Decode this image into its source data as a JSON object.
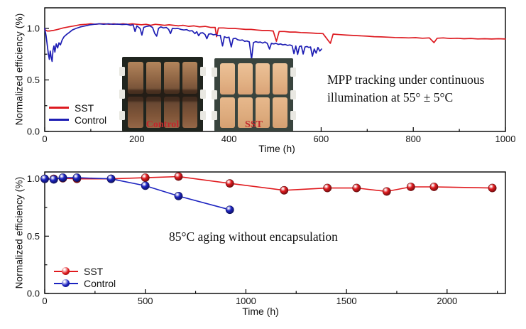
{
  "figure": {
    "background": "#ffffff"
  },
  "top_chart": {
    "y_axis_title": "Normalized efficiency (%)",
    "x_axis_title": "Time (h)",
    "annotation_line1": "MPP tracking under continuous",
    "annotation_line2": "illumination at 55° ± 5°C",
    "insets": {
      "control_label": "Control",
      "sst_label": "SST",
      "label_color": "#c2272c"
    }
  },
  "bottom_chart": {
    "y_axis_title": "Normalized efficiency (%)",
    "x_axis_title": "Time (h)",
    "annotation": "85°C aging without encapsulation"
  },
  "chart_data": [
    {
      "type": "line",
      "title": "MPP tracking under continuous illumination at 55° ± 5°C",
      "xlabel": "Time (h)",
      "ylabel": "Normalized efficiency (%)",
      "xlim": [
        0,
        1000
      ],
      "ylim": [
        0,
        1.2
      ],
      "x_ticks": [
        0,
        200,
        400,
        600,
        800,
        1000
      ],
      "x_minor_step": 100,
      "y_ticks": [
        0.0,
        0.5,
        1.0
      ],
      "y_minor_step": 0.25,
      "grid": false,
      "legend_position": "lower-left",
      "series": [
        {
          "name": "SST",
          "color": "#dd1a20",
          "marker": false,
          "points": [
            [
              0,
              0.99
            ],
            [
              5,
              0.975
            ],
            [
              10,
              0.975
            ],
            [
              18,
              0.98
            ],
            [
              28,
              0.99
            ],
            [
              40,
              1.005
            ],
            [
              52,
              1.015
            ],
            [
              64,
              1.025
            ],
            [
              76,
              1.035
            ],
            [
              90,
              1.04
            ],
            [
              100,
              1.045
            ],
            [
              110,
              1.04
            ],
            [
              120,
              1.045
            ],
            [
              130,
              1.045
            ],
            [
              140,
              1.04
            ],
            [
              150,
              1.045
            ],
            [
              160,
              1.04
            ],
            [
              170,
              1.045
            ],
            [
              180,
              1.04
            ],
            [
              190,
              1.045
            ],
            [
              200,
              1.04
            ],
            [
              210,
              1.035
            ],
            [
              220,
              1.04
            ],
            [
              230,
              1.03
            ],
            [
              240,
              1.04
            ],
            [
              250,
              1.035
            ],
            [
              260,
              1.03
            ],
            [
              270,
              1.035
            ],
            [
              280,
              1.03
            ],
            [
              290,
              1.025
            ],
            [
              300,
              1.03
            ],
            [
              312,
              1.02
            ],
            [
              324,
              1.025
            ],
            [
              336,
              1.015
            ],
            [
              348,
              1.02
            ],
            [
              360,
              1.01
            ],
            [
              370,
              1.01
            ],
            [
              373,
              0.92
            ],
            [
              377,
              1.005
            ],
            [
              388,
              1.005
            ],
            [
              400,
              1.0
            ],
            [
              412,
              1.0
            ],
            [
              424,
              0.995
            ],
            [
              436,
              0.99
            ],
            [
              448,
              0.99
            ],
            [
              460,
              0.985
            ],
            [
              472,
              0.98
            ],
            [
              484,
              0.98
            ],
            [
              496,
              0.975
            ],
            [
              503,
              0.875
            ],
            [
              509,
              0.97
            ],
            [
              520,
              0.97
            ],
            [
              532,
              0.965
            ],
            [
              544,
              0.965
            ],
            [
              556,
              0.96
            ],
            [
              568,
              0.958
            ],
            [
              580,
              0.955
            ],
            [
              592,
              0.952
            ],
            [
              604,
              0.95
            ],
            [
              620,
              0.855
            ],
            [
              626,
              0.945
            ],
            [
              640,
              0.94
            ],
            [
              655,
              0.935
            ],
            [
              670,
              0.932
            ],
            [
              685,
              0.928
            ],
            [
              700,
              0.925
            ],
            [
              715,
              0.92
            ],
            [
              730,
              0.918
            ],
            [
              745,
              0.915
            ],
            [
              760,
              0.912
            ],
            [
              775,
              0.91
            ],
            [
              790,
              0.908
            ],
            [
              805,
              0.91
            ],
            [
              820,
              0.905
            ],
            [
              835,
              0.908
            ],
            [
              845,
              0.862
            ],
            [
              852,
              0.905
            ],
            [
              865,
              0.908
            ],
            [
              880,
              0.902
            ],
            [
              895,
              0.905
            ],
            [
              910,
              0.9
            ],
            [
              925,
              0.903
            ],
            [
              940,
              0.898
            ],
            [
              955,
              0.9
            ],
            [
              970,
              0.897
            ],
            [
              985,
              0.9
            ],
            [
              1000,
              0.897
            ]
          ]
        },
        {
          "name": "Control",
          "color": "#1e1eb4",
          "marker": false,
          "points": [
            [
              0,
              1.0
            ],
            [
              3,
              0.93
            ],
            [
              6,
              0.82
            ],
            [
              8,
              0.75
            ],
            [
              10,
              0.7
            ],
            [
              12,
              0.78
            ],
            [
              14,
              0.72
            ],
            [
              16,
              0.68
            ],
            [
              18,
              0.79
            ],
            [
              20,
              0.83
            ],
            [
              22,
              0.77
            ],
            [
              25,
              0.85
            ],
            [
              28,
              0.81
            ],
            [
              31,
              0.86
            ],
            [
              34,
              0.84
            ],
            [
              38,
              0.89
            ],
            [
              42,
              0.92
            ],
            [
              47,
              0.94
            ],
            [
              53,
              0.96
            ],
            [
              60,
              0.985
            ],
            [
              68,
              1.0
            ],
            [
              78,
              1.015
            ],
            [
              88,
              1.025
            ],
            [
              98,
              1.035
            ],
            [
              108,
              1.04
            ],
            [
              118,
              1.045
            ],
            [
              128,
              1.04
            ],
            [
              138,
              1.045
            ],
            [
              148,
              1.04
            ],
            [
              158,
              1.042
            ],
            [
              168,
              1.038
            ],
            [
              178,
              1.04
            ],
            [
              186,
              1.03
            ],
            [
              192,
              1.035
            ],
            [
              196,
              0.97
            ],
            [
              200,
              1.025
            ],
            [
              207,
              1.0
            ],
            [
              211,
              0.935
            ],
            [
              215,
              1.01
            ],
            [
              221,
              1.02
            ],
            [
              228,
              1.025
            ],
            [
              234,
              1.01
            ],
            [
              239,
              0.95
            ],
            [
              243,
              0.925
            ],
            [
              247,
              1.0
            ],
            [
              252,
              1.015
            ],
            [
              258,
              1.005
            ],
            [
              264,
              1.01
            ],
            [
              269,
              0.99
            ],
            [
              273,
              0.95
            ],
            [
              277,
              1.0
            ],
            [
              283,
              0.998
            ],
            [
              289,
              1.0
            ],
            [
              296,
              0.99
            ],
            [
              302,
              0.985
            ],
            [
              308,
              0.988
            ],
            [
              314,
              0.975
            ],
            [
              320,
              0.978
            ],
            [
              326,
              0.95
            ],
            [
              330,
              0.968
            ],
            [
              334,
              0.93
            ],
            [
              338,
              0.955
            ],
            [
              343,
              0.958
            ],
            [
              348,
              0.94
            ],
            [
              352,
              0.9
            ],
            [
              356,
              0.945
            ],
            [
              361,
              0.948
            ],
            [
              366,
              0.938
            ],
            [
              371,
              0.942
            ],
            [
              376,
              0.93
            ],
            [
              381,
              0.933
            ],
            [
              386,
              0.83
            ],
            [
              390,
              0.92
            ],
            [
              395,
              0.91
            ],
            [
              400,
              0.915
            ],
            [
              405,
              0.82
            ],
            [
              409,
              0.9
            ],
            [
              414,
              0.905
            ],
            [
              419,
              0.89
            ],
            [
              424,
              0.885
            ],
            [
              429,
              0.888
            ],
            [
              434,
              0.875
            ],
            [
              439,
              0.878
            ],
            [
              444,
              0.87
            ],
            [
              449,
              0.7
            ],
            [
              453,
              0.862
            ],
            [
              458,
              0.872
            ],
            [
              463,
              0.865
            ],
            [
              468,
              0.868
            ],
            [
              473,
              0.858
            ],
            [
              478,
              0.868
            ],
            [
              483,
              0.855
            ],
            [
              488,
              0.8
            ],
            [
              492,
              0.855
            ],
            [
              497,
              0.85
            ],
            [
              502,
              0.855
            ],
            [
              507,
              0.845
            ],
            [
              512,
              0.85
            ],
            [
              517,
              0.84
            ],
            [
              522,
              0.845
            ],
            [
              527,
              0.835
            ],
            [
              532,
              0.84
            ],
            [
              537,
              0.832
            ],
            [
              541,
              0.755
            ],
            [
              545,
              0.83
            ],
            [
              549,
              0.748
            ],
            [
              553,
              0.825
            ],
            [
              557,
              0.83
            ],
            [
              561,
              0.752
            ],
            [
              565,
              0.82
            ],
            [
              569,
              0.825
            ],
            [
              573,
              0.815
            ],
            [
              577,
              0.82
            ],
            [
              581,
              0.73
            ],
            [
              585,
              0.8
            ],
            [
              589,
              0.76
            ],
            [
              593,
              0.815
            ],
            [
              597,
              0.78
            ],
            [
              601,
              0.8
            ]
          ]
        }
      ]
    },
    {
      "type": "line",
      "title": "85°C aging without encapsulation",
      "xlabel": "Time (h)",
      "ylabel": "Normalized efficiency (%)",
      "xlim": [
        0,
        2290
      ],
      "ylim": [
        0,
        1.06
      ],
      "x_ticks": [
        0,
        500,
        1000,
        1500,
        2000
      ],
      "x_minor_step": 250,
      "y_ticks": [
        0.0,
        0.5,
        1.0
      ],
      "y_minor_step": 0.25,
      "grid": false,
      "legend_position": "lower-left",
      "series": [
        {
          "name": "SST",
          "color": "#e01a1e",
          "marker": true,
          "points": [
            [
              0,
              1.0
            ],
            [
              45,
              1.0
            ],
            [
              90,
              1.005
            ],
            [
              160,
              1.0
            ],
            [
              330,
              1.0
            ],
            [
              500,
              1.01
            ],
            [
              665,
              1.02
            ],
            [
              920,
              0.96
            ],
            [
              1190,
              0.9
            ],
            [
              1405,
              0.92
            ],
            [
              1550,
              0.92
            ],
            [
              1700,
              0.89
            ],
            [
              1820,
              0.93
            ],
            [
              1935,
              0.93
            ],
            [
              2225,
              0.92
            ]
          ]
        },
        {
          "name": "Control",
          "color": "#1c23c0",
          "marker": true,
          "points": [
            [
              0,
              1.0
            ],
            [
              45,
              0.995
            ],
            [
              90,
              1.01
            ],
            [
              160,
              1.01
            ],
            [
              330,
              1.0
            ],
            [
              500,
              0.94
            ],
            [
              665,
              0.85
            ],
            [
              920,
              0.73
            ]
          ]
        }
      ]
    }
  ]
}
